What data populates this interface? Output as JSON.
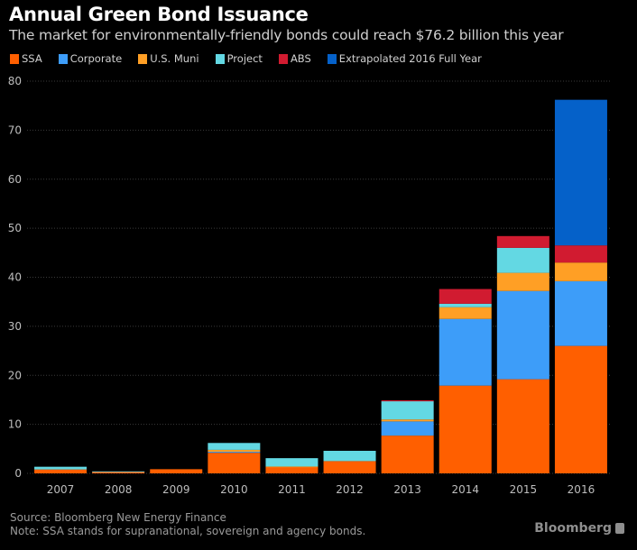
{
  "header": {
    "title": "Annual Green Bond Issuance",
    "subtitle": "The market for environmentally-friendly bonds could reach $76.2 billion this year"
  },
  "footer": {
    "source": "Source: Bloomberg New Energy Finance",
    "note": "Note: SSA stands for supranational, sovereign and agency bonds.",
    "logo": "Bloomberg"
  },
  "chart_data": {
    "type": "bar",
    "stacked": true,
    "title": "Annual Green Bond Issuance",
    "subtitle": "The market for environmentally-friendly bonds could reach $76.2 billion this year",
    "xlabel": "",
    "ylabel": "",
    "ylim": [
      0,
      80
    ],
    "yticks": [
      0,
      10,
      20,
      30,
      40,
      50,
      60,
      70,
      80
    ],
    "grid": true,
    "legend_position": "top-left",
    "categories": [
      "2007",
      "2008",
      "2009",
      "2010",
      "2011",
      "2012",
      "2013",
      "2014",
      "2015",
      "2016"
    ],
    "series": [
      {
        "name": "SSA",
        "color": "#ff5f00",
        "values": [
          0.8,
          0.35,
          0.85,
          4.2,
          1.3,
          2.5,
          7.7,
          17.9,
          19.2,
          26.0
        ]
      },
      {
        "name": "Corporate",
        "color": "#3d9df9",
        "values": [
          0.0,
          0.0,
          0.0,
          0.2,
          0.0,
          0.0,
          2.9,
          13.6,
          18.0,
          13.2
        ]
      },
      {
        "name": "U.S. Muni",
        "color": "#ff9f25",
        "values": [
          0.0,
          0.0,
          0.0,
          0.4,
          0.1,
          0.0,
          0.4,
          2.4,
          3.7,
          3.8
        ]
      },
      {
        "name": "Project",
        "color": "#63d8e3",
        "values": [
          0.55,
          0.05,
          0.0,
          1.4,
          1.7,
          2.1,
          3.7,
          0.7,
          5.1,
          0.0
        ]
      },
      {
        "name": "ABS",
        "color": "#d11b30",
        "values": [
          0.0,
          0.0,
          0.0,
          0.0,
          0.0,
          0.0,
          0.2,
          3.0,
          2.4,
          3.5
        ]
      },
      {
        "name": "Extrapolated 2016 Full Year",
        "color": "#0561c9",
        "values": [
          0,
          0,
          0,
          0,
          0,
          0,
          0,
          0,
          0,
          29.7
        ]
      }
    ]
  }
}
